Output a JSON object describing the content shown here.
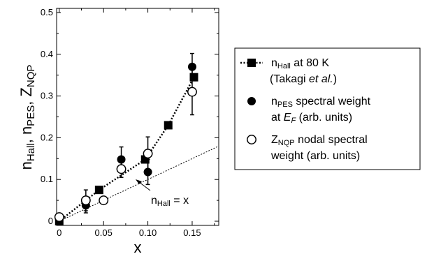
{
  "chart_data": {
    "type": "scatter",
    "x_axis": {
      "label": "x",
      "ticks": [
        "0",
        "0.05",
        "0.10",
        "0.15"
      ],
      "range": [
        -0.003,
        0.18
      ]
    },
    "y_axis": {
      "label_parts": [
        {
          "main": "n",
          "sub": "Hall"
        },
        {
          "main": ", n",
          "sub": "PES"
        },
        {
          "main": ", Z",
          "sub": "NQP"
        }
      ],
      "ticks": [
        "0",
        "0.1",
        "0.2",
        "0.3",
        "0.4",
        "0.5"
      ],
      "range": [
        -0.01,
        0.51
      ]
    },
    "series": [
      {
        "marker": "filled-square",
        "line": "dotted",
        "points": [
          {
            "x": 0.0,
            "y": 0.0
          },
          {
            "x": 0.045,
            "y": 0.075
          },
          {
            "x": 0.097,
            "y": 0.148
          },
          {
            "x": 0.123,
            "y": 0.23
          },
          {
            "x": 0.152,
            "y": 0.345
          }
        ]
      },
      {
        "marker": "filled-circle",
        "points": [
          {
            "x": 0.0,
            "y": 0.005,
            "err": 0.0
          },
          {
            "x": 0.03,
            "y": 0.038,
            "err": 0.018
          },
          {
            "x": 0.07,
            "y": 0.148,
            "err": 0.03
          },
          {
            "x": 0.1,
            "y": 0.118,
            "err": 0.03
          },
          {
            "x": 0.15,
            "y": 0.37,
            "err": 0.032
          }
        ]
      },
      {
        "marker": "open-circle",
        "points": [
          {
            "x": 0.0,
            "y": 0.01,
            "err": 0.0
          },
          {
            "x": 0.03,
            "y": 0.05,
            "err": 0.025
          },
          {
            "x": 0.05,
            "y": 0.05,
            "err": 0.0
          },
          {
            "x": 0.07,
            "y": 0.125,
            "err": 0.02
          },
          {
            "x": 0.1,
            "y": 0.162,
            "err": 0.04
          },
          {
            "x": 0.15,
            "y": 0.31,
            "err": 0.055
          }
        ]
      }
    ],
    "reference_line": {
      "style": "dotted",
      "from": {
        "x": 0.0,
        "y": 0.0
      },
      "to": {
        "x": 0.18,
        "y": 0.18
      },
      "annotation_parts": [
        {
          "main": "n",
          "sub": "Hall"
        },
        {
          "main": " = x",
          "sub": ""
        }
      ]
    },
    "legend": {
      "placement": "right",
      "entries": [
        {
          "marker": "filled-square",
          "line": "dotted",
          "lines": [
            [
              {
                "t": "n",
                "s": "normal"
              },
              {
                "t": "Hall",
                "s": "sub"
              },
              {
                "t": " at 80 K",
                "s": "normal"
              }
            ],
            [
              {
                "t": " (Takagi ",
                "s": "normal"
              },
              {
                "t": "et al.",
                "s": "italic"
              },
              {
                "t": ")",
                "s": "normal"
              }
            ]
          ]
        },
        {
          "marker": "filled-circle",
          "lines": [
            [
              {
                "t": "n",
                "s": "normal"
              },
              {
                "t": "PES",
                "s": "sub"
              },
              {
                "t": " spectral weight",
                "s": "normal"
              }
            ],
            [
              {
                "t": "at ",
                "s": "normal"
              },
              {
                "t": "E",
                "s": "italic"
              },
              {
                "t": "F",
                "s": "italicsub"
              },
              {
                "t": " (arb. units)",
                "s": "normal"
              }
            ]
          ]
        },
        {
          "marker": "open-circle",
          "lines": [
            [
              {
                "t": "Z",
                "s": "normal"
              },
              {
                "t": "NQP",
                "s": "sub"
              },
              {
                "t": " nodal spectral",
                "s": "normal"
              }
            ],
            [
              {
                "t": " weight (arb. units)",
                "s": "normal"
              }
            ]
          ]
        }
      ]
    }
  }
}
